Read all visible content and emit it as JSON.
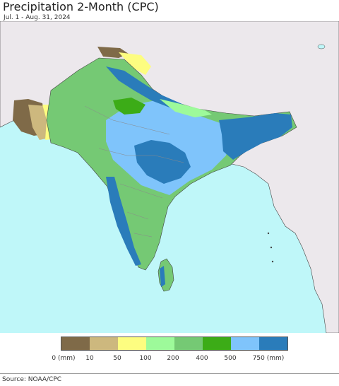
{
  "title": "Precipitation 2-Month (CPC)",
  "subtitle": "Jul. 1 - Aug. 31, 2024",
  "source": "Source: NOAA/CPC",
  "legend": {
    "colors": [
      "#7f6a48",
      "#cdb87e",
      "#fdfd80",
      "#9dfa9a",
      "#75c974",
      "#3cac17",
      "#7fc4fb",
      "#2a7cba"
    ],
    "labels": [
      "0 (mm)",
      "10",
      "50",
      "100",
      "200",
      "400",
      "500",
      "750 (mm)"
    ]
  },
  "map_colors": {
    "ocean": "#bff7f9",
    "land_outside": "#ece8ec",
    "border": "#444444",
    "internal_border": "#8a8a8a"
  }
}
